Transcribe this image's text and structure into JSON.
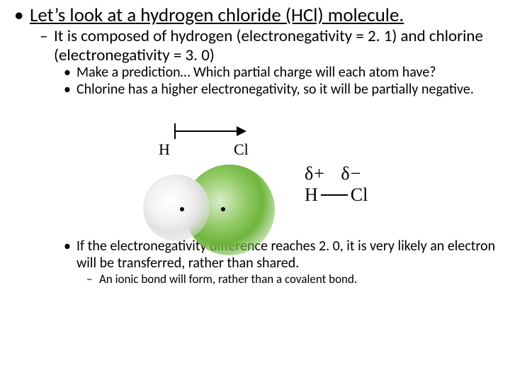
{
  "bullets": {
    "lvl1_text": "Let’s look at a hydrogen chloride (HCl) molecule.",
    "lvl2_text": "It is composed of hydrogen (electronegativity = 2. 1) and chlorine (electronegativity = 3. 0)",
    "lvl3_a": "Make a prediction… Which partial charge will each atom have?",
    "lvl3_b": "Chlorine has a higher electronegativity, so it will be partially negative.",
    "lvl3_c": "If the electronegativity difference reaches 2. 0, it is very likely an electron will be transferred, rather than shared.",
    "lvl4_text": "An ionic bond will form, rather than a covalent bond."
  },
  "figure": {
    "label_h": "H",
    "label_cl": "Cl",
    "colors": {
      "hydrogen_fill": "#e2e2e2",
      "chlorine_fill": "#6fb53e",
      "arrow_color": "#000000",
      "dot_color": "#000000"
    }
  },
  "dipole": {
    "delta_plus": "δ+",
    "delta_minus": "δ−",
    "left_atom": "H",
    "right_atom": "Cl"
  },
  "style": {
    "background": "#ffffff",
    "text_color": "#000000",
    "font_family": "Calibri",
    "serif_family": "Times New Roman",
    "font_sizes_pt": {
      "lvl1": 27,
      "lvl2": 23,
      "lvl3": 20,
      "lvl4": 17,
      "figure_labels": 22,
      "dipole": 26
    }
  }
}
